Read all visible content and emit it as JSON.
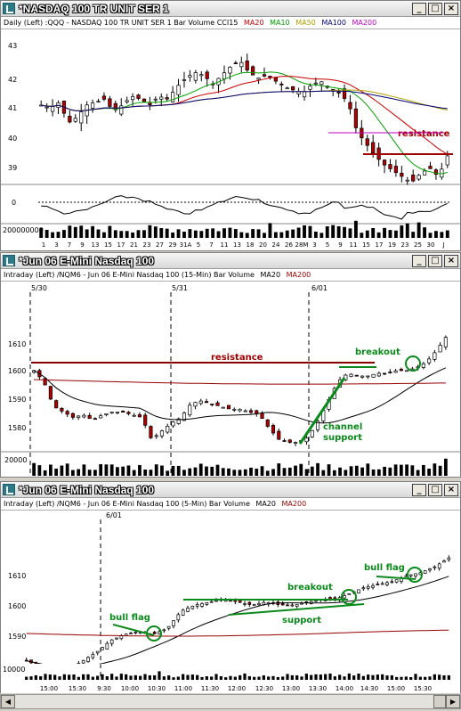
{
  "win1": {
    "title": "*NASDAQ 100 TR UNIT SER 1",
    "header_left": "Daily  (Left)   :QQQ - NASDAQ 100 TR UNIT SER 1  Bar  Volume  CCI15",
    "legend": [
      {
        "label": "MA20",
        "color": "#cc0000"
      },
      {
        "label": "MA10",
        "color": "#00a000"
      },
      {
        "label": "MA50",
        "color": "#b0a000"
      },
      {
        "label": "MA100",
        "color": "#00007a"
      },
      {
        "label": "MA200",
        "color": "#c000c0"
      }
    ],
    "price_ticks": [
      "43",
      "42",
      "41",
      "40",
      "39"
    ],
    "cci_tick": "0",
    "volume_tick": "200000000",
    "date_labels": [
      "1",
      "3",
      "7",
      "9",
      "13",
      "15",
      "17",
      "21",
      "23",
      "27",
      "29",
      "31A",
      "5",
      "7",
      "11",
      "13",
      "18",
      "20",
      "24",
      "26",
      "28M",
      "3",
      "5",
      "9",
      "11",
      "15",
      "17",
      "19",
      "23",
      "25",
      "30",
      "J"
    ],
    "annotation_resistance": "resistance"
  },
  "win2": {
    "title": "*Jun 06  E-Mini Nasdaq 100",
    "header_left": "Intraday  (Left)   /NQM6 - Jun 06 E-Mini Nasdaq 100 (15-Min)  Bar  Volume",
    "legend": [
      {
        "label": "MA20",
        "color": "#000000"
      },
      {
        "label": "MA200",
        "color": "#990000"
      }
    ],
    "session_labels": [
      "5/30",
      "5/31",
      "6/01"
    ],
    "price_ticks": [
      "1610",
      "1600",
      "1590",
      "1580"
    ],
    "volume_tick": "20000",
    "time_labels": [
      "10:00",
      "12:00",
      "14:00",
      "10:00",
      "12:00",
      "14:00",
      "10:00",
      "12:00",
      "14:00"
    ],
    "annotation_resistance": "resistance",
    "annotation_breakout": "breakout",
    "annotation_channel": "channel",
    "annotation_support": "support"
  },
  "win3": {
    "title": "*Jun 06  E-Mini Nasdaq 100",
    "header_left": "Intraday  (Left)   /NQM6 - Jun 06 E-Mini Nasdaq 100 (5-Min)  Bar  Volume",
    "legend": [
      {
        "label": "MA20",
        "color": "#000000"
      },
      {
        "label": "MA200",
        "color": "#990000"
      }
    ],
    "session_label": "6/01",
    "price_ticks": [
      "1610",
      "1600",
      "1590",
      "1580"
    ],
    "volume_tick": "10000",
    "time_labels": [
      "15:00",
      "15:30",
      "9:30",
      "10:00",
      "10:30",
      "11:00",
      "11:30",
      "12:00",
      "12:30",
      "13:00",
      "13:30",
      "14:00",
      "14:30",
      "15:00",
      "15:30"
    ],
    "annotation_bullflag1": "bull flag",
    "annotation_breakout": "breakout",
    "annotation_support": "support",
    "annotation_bullflag2": "bull flag"
  },
  "colors": {
    "up": "#ffffff",
    "down": "#b00000",
    "accent_green": "#0a8a1a",
    "resistance": "#a00000"
  }
}
